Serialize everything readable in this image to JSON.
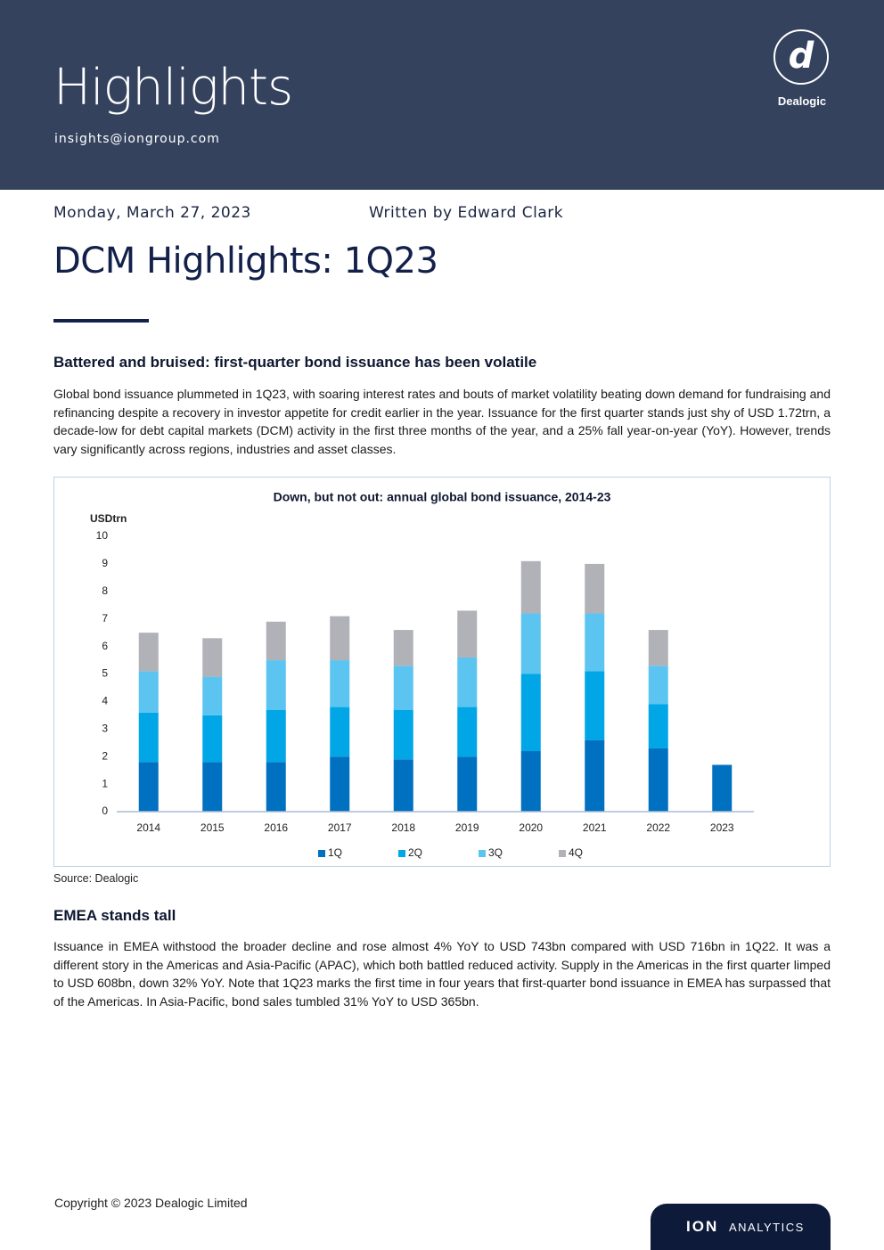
{
  "header": {
    "title": "Highlights",
    "email": "insights@iongroup.com",
    "logo_letter": "d",
    "logo_name": "Dealogic"
  },
  "meta": {
    "date": "Monday, March 27, 2023",
    "author": "Written by Edward Clark"
  },
  "title": "DCM Highlights: 1Q23",
  "sections": [
    {
      "heading": "Battered and bruised: first-quarter bond issuance has been volatile",
      "paragraph": "Global bond issuance plummeted in 1Q23, with soaring interest rates and bouts of market volatility beating down demand for fundraising and refinancing despite a recovery in investor appetite for credit earlier in the year. Issuance for the first quarter stands just shy of USD 1.72trn, a decade-low for debt capital markets (DCM) activity in the first three months of the year, and a 25% fall year-on-year (YoY). However, trends vary significantly across regions, industries and asset classes."
    },
    {
      "heading": "EMEA stands tall",
      "paragraph": "Issuance in EMEA withstood the broader decline and rose almost 4% YoY to USD 743bn compared with USD 716bn in 1Q22. It was a different story in the Americas and Asia-Pacific (APAC), which both battled reduced activity. Supply in the Americas in the first quarter limped to USD 608bn, down 32% YoY. Note that 1Q23 marks the first time in four years that first-quarter bond issuance in EMEA has surpassed that of the Americas. In Asia-Pacific, bond sales tumbled 31% YoY to USD 365bn."
    }
  ],
  "chart_data": {
    "type": "stacked_bar",
    "title": "Down, but not out: annual global bond issuance, 2014-23",
    "y_label": "USDtrn",
    "categories": [
      "2014",
      "2015",
      "2016",
      "2017",
      "2018",
      "2019",
      "2020",
      "2021",
      "2022",
      "2023"
    ],
    "series": [
      {
        "name": "1Q",
        "color": "#0070c0",
        "values": [
          1.8,
          1.8,
          1.8,
          2.0,
          1.9,
          2.0,
          2.2,
          2.6,
          2.3,
          1.7
        ]
      },
      {
        "name": "2Q",
        "color": "#00a6e6",
        "values": [
          1.8,
          1.7,
          1.9,
          1.8,
          1.8,
          1.8,
          2.8,
          2.5,
          1.6,
          null
        ]
      },
      {
        "name": "3Q",
        "color": "#5bc4f0",
        "values": [
          1.5,
          1.4,
          1.8,
          1.7,
          1.6,
          1.8,
          2.2,
          2.1,
          1.4,
          null
        ]
      },
      {
        "name": "4Q",
        "color": "#b1b1b8",
        "values": [
          1.4,
          1.4,
          1.4,
          1.6,
          1.3,
          1.7,
          1.9,
          1.8,
          1.3,
          null
        ]
      }
    ],
    "ylim": [
      0,
      10
    ],
    "yticks": [
      0,
      1,
      2,
      3,
      4,
      5,
      6,
      7,
      8,
      9,
      10
    ],
    "grid": false,
    "legend": "bottom",
    "source": "Source: Dealogic"
  },
  "footer": {
    "copyright": "Copyright © 2023 Dealogic Limited",
    "brand_mark": "ION",
    "brand_name": "ANALYTICS"
  }
}
